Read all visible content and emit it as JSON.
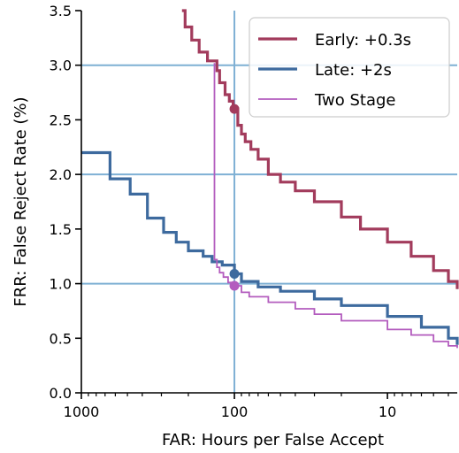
{
  "chart_data": {
    "type": "line",
    "xlabel": "FAR: Hours per False Accept",
    "ylabel": "FRR: False Reject Rate (%)",
    "x_scale": "log",
    "x_reversed": true,
    "xlim": [
      1000,
      3.5
    ],
    "ylim": [
      0.0,
      3.5
    ],
    "x_ticks": [
      1000,
      100,
      10
    ],
    "x_tick_labels": [
      "1000",
      "100",
      "10"
    ],
    "y_ticks": [
      0.0,
      0.5,
      1.0,
      1.5,
      2.0,
      2.5,
      3.0,
      3.5
    ],
    "y_tick_labels": [
      "0.0",
      "0.5",
      "1.0",
      "1.5",
      "2.0",
      "2.5",
      "3.0",
      "3.5"
    ],
    "grid": "reference lines at FAR 100 and FRR 1.0, 2.0, 3.0",
    "reference_lines": {
      "x": [
        100
      ],
      "y": [
        1.0,
        2.0,
        3.0
      ]
    },
    "legend_position": "top-right",
    "series": [
      {
        "name": "Early: +0.3s",
        "color": "#a23b5c",
        "x": [
          220,
          210,
          190,
          170,
          150,
          130,
          125,
          115,
          108,
          102,
          100,
          95,
          90,
          85,
          78,
          70,
          60,
          50,
          40,
          30,
          20,
          15,
          10,
          7,
          5,
          4,
          3.5
        ],
        "y": [
          3.5,
          3.35,
          3.23,
          3.12,
          3.04,
          2.95,
          2.84,
          2.73,
          2.67,
          2.62,
          2.6,
          2.45,
          2.37,
          2.3,
          2.23,
          2.14,
          2.0,
          1.93,
          1.85,
          1.75,
          1.61,
          1.5,
          1.38,
          1.25,
          1.12,
          1.02,
          0.95
        ],
        "markers": [
          {
            "x": 100,
            "y": 2.6
          }
        ]
      },
      {
        "name": "Late: +2s",
        "color": "#3d6a9e",
        "x": [
          1000,
          700,
          650,
          480,
          370,
          290,
          240,
          200,
          160,
          140,
          120,
          100,
          90,
          70,
          50,
          30,
          20,
          10,
          6,
          4,
          3.5
        ],
        "y": [
          2.2,
          2.2,
          1.96,
          1.82,
          1.6,
          1.47,
          1.38,
          1.3,
          1.25,
          1.2,
          1.17,
          1.09,
          1.02,
          0.97,
          0.93,
          0.86,
          0.8,
          0.7,
          0.6,
          0.5,
          0.44
        ],
        "markers": [
          {
            "x": 100,
            "y": 1.09
          }
        ]
      },
      {
        "name": "Two Stage",
        "color": "#b35cbe",
        "x": [
          135,
          135,
          130,
          125,
          118,
          110,
          100,
          90,
          80,
          60,
          40,
          30,
          20,
          10,
          7,
          5,
          4,
          3.5
        ],
        "y": [
          3.02,
          1.22,
          1.15,
          1.1,
          1.06,
          1.01,
          0.98,
          0.92,
          0.88,
          0.83,
          0.77,
          0.72,
          0.66,
          0.58,
          0.53,
          0.47,
          0.43,
          0.41
        ],
        "markers": [
          {
            "x": 100,
            "y": 0.98
          }
        ]
      }
    ]
  }
}
